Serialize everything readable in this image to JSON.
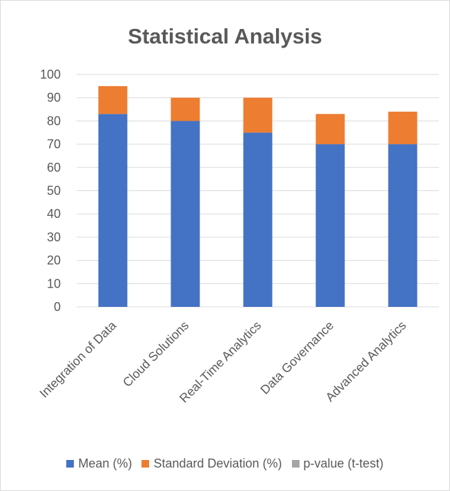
{
  "chart_data": {
    "type": "bar",
    "stacked": true,
    "title": "Statistical Analysis",
    "categories": [
      "Integration of Data",
      "Cloud Solutions",
      "Real-Time Analytics",
      "Data Governance",
      "Advanced Analytics"
    ],
    "series": [
      {
        "name": "Mean (%)",
        "color": "#4472c4",
        "values": [
          83,
          80,
          75,
          70,
          70
        ]
      },
      {
        "name": "Standard Deviation (%)",
        "color": "#ed7d31",
        "values": [
          12,
          10,
          15,
          13,
          14
        ]
      },
      {
        "name": "p-value (t-test)",
        "color": "#a5a5a5",
        "values": [
          0,
          0,
          0,
          0,
          0
        ]
      }
    ],
    "ylim": [
      0,
      100
    ],
    "yticks": [
      0,
      10,
      20,
      30,
      40,
      50,
      60,
      70,
      80,
      90,
      100
    ],
    "grid": true,
    "legend_position": "bottom"
  }
}
